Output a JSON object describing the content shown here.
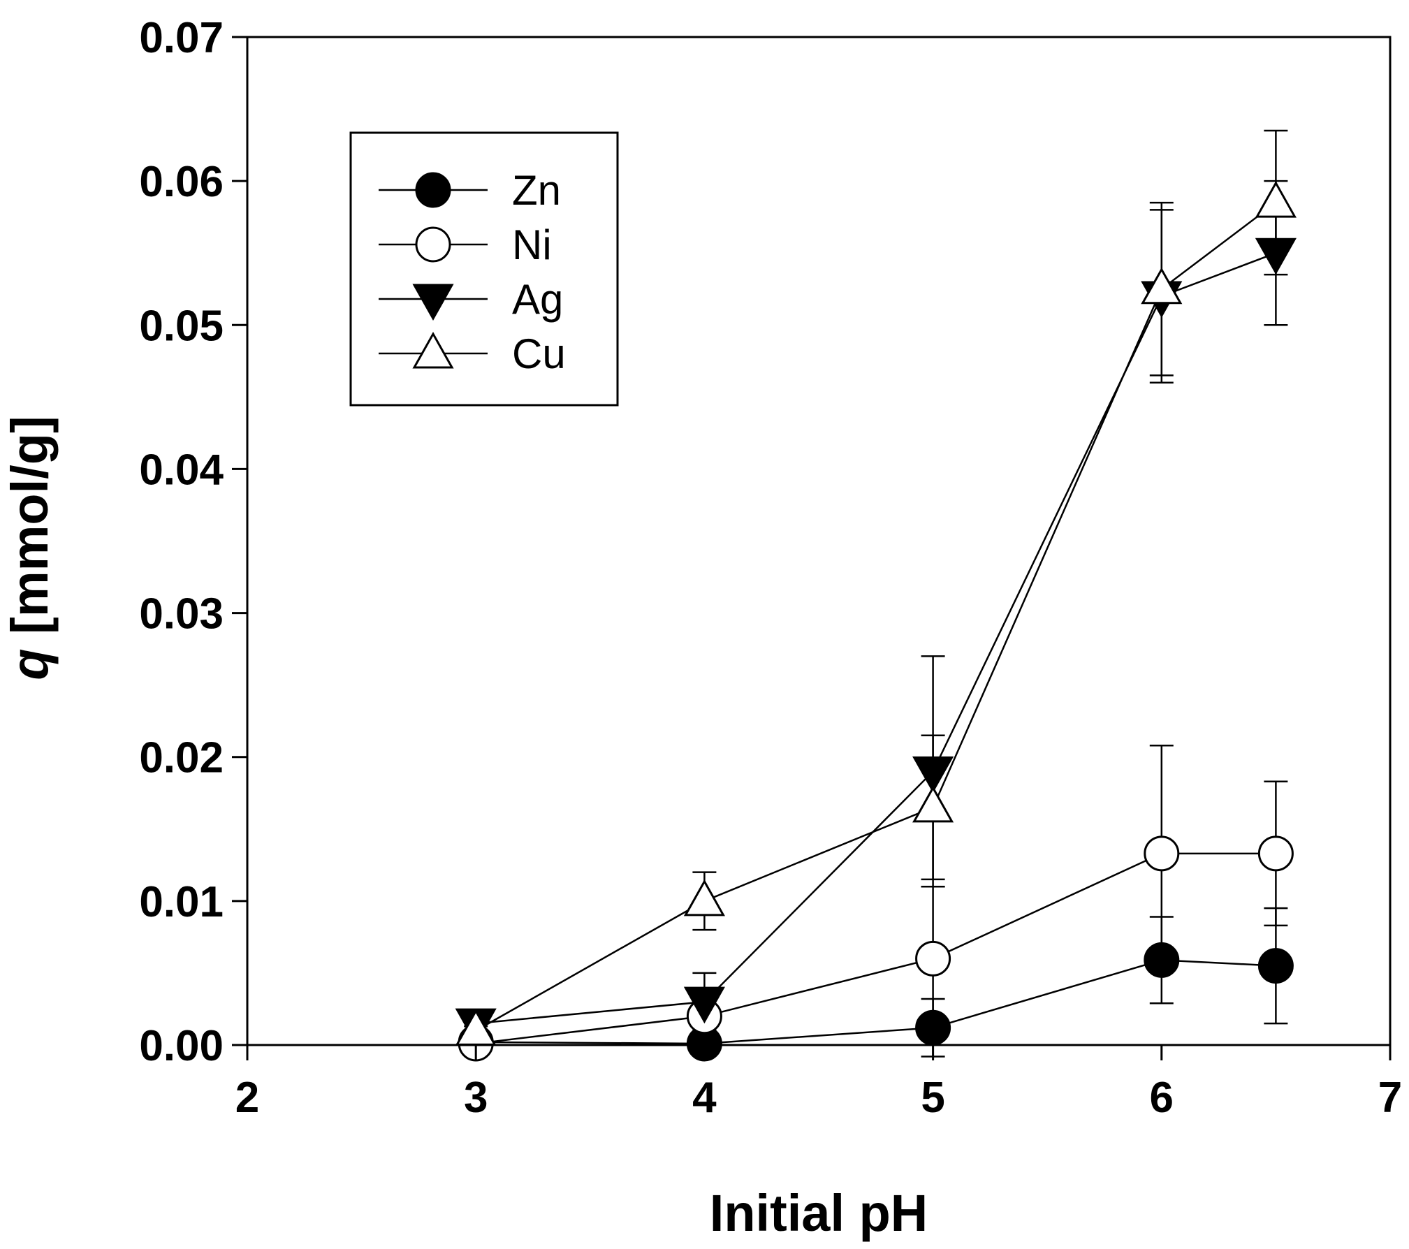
{
  "chart_data": {
    "type": "line",
    "title": "",
    "xlabel": "Initial pH",
    "ylabel_symbol": "q",
    "ylabel_unit": " [mmol/g]",
    "xlim": [
      2,
      7
    ],
    "ylim": [
      0,
      0.07
    ],
    "xticks": [
      "2",
      "3",
      "4",
      "5",
      "6",
      "7"
    ],
    "yticks": [
      "0.00",
      "0.01",
      "0.02",
      "0.03",
      "0.04",
      "0.05",
      "0.06",
      "0.07"
    ],
    "grid": false,
    "legend_position": "top-left",
    "series": [
      {
        "name": "Zn",
        "marker": "circle-filled",
        "x": [
          3,
          4,
          5,
          6,
          6.5
        ],
        "values": [
          0.0002,
          0.0001,
          0.0012,
          0.0059,
          0.0055
        ],
        "error": [
          0.0001,
          0.0001,
          0.002,
          0.003,
          0.004
        ]
      },
      {
        "name": "Ni",
        "marker": "circle-open",
        "x": [
          3,
          4,
          5,
          6,
          6.5
        ],
        "values": [
          0.0001,
          0.002,
          0.006,
          0.0133,
          0.0133
        ],
        "error": [
          0.0001,
          0.0005,
          0.005,
          0.0075,
          0.005
        ]
      },
      {
        "name": "Ag",
        "marker": "triangle-down-filled",
        "x": [
          3,
          4,
          5,
          6,
          6.5
        ],
        "values": [
          0.0015,
          0.003,
          0.019,
          0.052,
          0.055
        ],
        "error": [
          0.0005,
          0.002,
          0.008,
          0.006,
          0.005
        ]
      },
      {
        "name": "Cu",
        "marker": "triangle-up-open",
        "x": [
          3,
          4,
          5,
          6,
          6.5
        ],
        "values": [
          0.001,
          0.01,
          0.0165,
          0.0525,
          0.0585
        ],
        "error": [
          0.0003,
          0.002,
          0.005,
          0.006,
          0.005
        ]
      }
    ]
  }
}
